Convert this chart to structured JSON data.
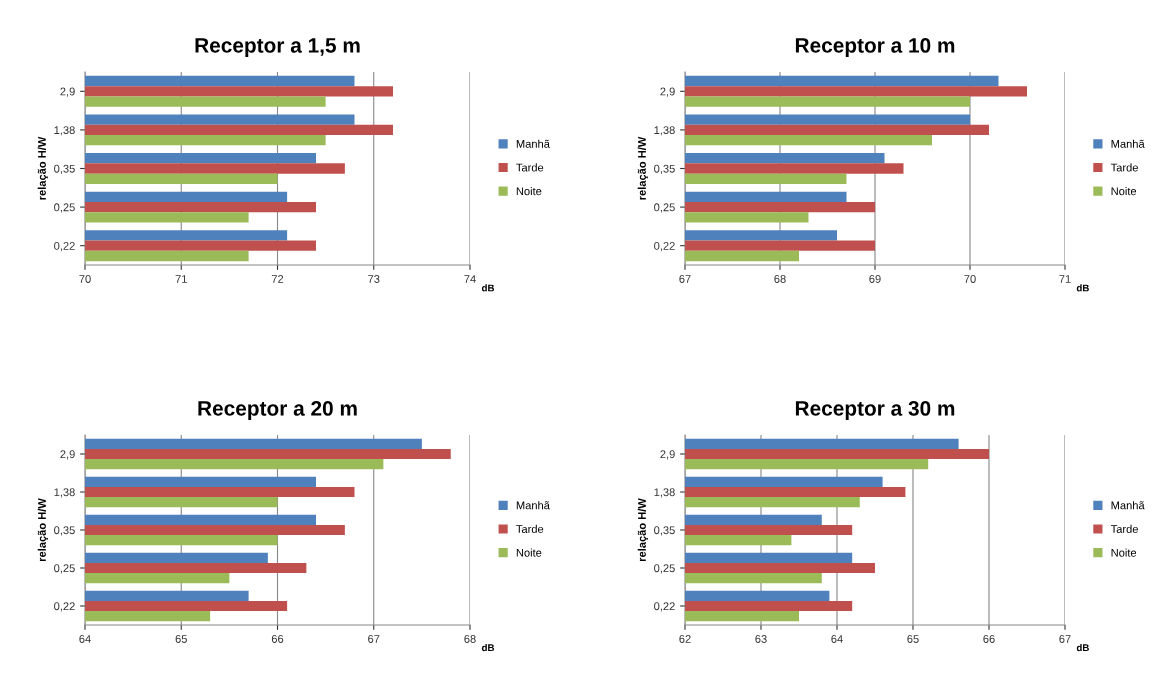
{
  "chart_data": [
    {
      "type": "bar",
      "orientation": "horizontal",
      "title": "Receptor a 1,5 m",
      "xlabel": "dB",
      "ylabel": "relação H/W",
      "categories": [
        "2,9",
        "1,38",
        "0,35",
        "0,25",
        "0,22"
      ],
      "xlim": [
        70,
        74
      ],
      "xticks": [
        70,
        71,
        72,
        73,
        74
      ],
      "grid": "x",
      "legend": "right",
      "series": [
        {
          "name": "Manhã",
          "color": "#4f81bd",
          "values": [
            72.8,
            72.8,
            72.4,
            72.1,
            72.1
          ]
        },
        {
          "name": "Tarde",
          "color": "#c0504d",
          "values": [
            73.2,
            73.2,
            72.7,
            72.4,
            72.4
          ]
        },
        {
          "name": "Noite",
          "color": "#9bbb59",
          "values": [
            72.5,
            72.5,
            72.0,
            71.7,
            71.7
          ]
        }
      ]
    },
    {
      "type": "bar",
      "orientation": "horizontal",
      "title": "Receptor a 10 m",
      "xlabel": "dB",
      "ylabel": "relação H/W",
      "categories": [
        "2,9",
        "1,38",
        "0,35",
        "0,25",
        "0,22"
      ],
      "xlim": [
        67,
        71
      ],
      "xticks": [
        67,
        68,
        69,
        70,
        71
      ],
      "grid": "x",
      "legend": "right",
      "series": [
        {
          "name": "Manhã",
          "color": "#4f81bd",
          "values": [
            70.3,
            70.0,
            69.1,
            68.7,
            68.6
          ]
        },
        {
          "name": "Tarde",
          "color": "#c0504d",
          "values": [
            70.6,
            70.2,
            69.3,
            69.0,
            69.0
          ]
        },
        {
          "name": "Noite",
          "color": "#9bbb59",
          "values": [
            70.0,
            69.6,
            68.7,
            68.3,
            68.2
          ]
        }
      ]
    },
    {
      "type": "bar",
      "orientation": "horizontal",
      "title": "Receptor a 20 m",
      "xlabel": "dB",
      "ylabel": "relação H/W",
      "categories": [
        "2,9",
        "1,38",
        "0,35",
        "0,25",
        "0,22"
      ],
      "xlim": [
        64,
        68
      ],
      "xticks": [
        64,
        65,
        66,
        67,
        68
      ],
      "grid": "x",
      "legend": "right",
      "series": [
        {
          "name": "Manhã",
          "color": "#4f81bd",
          "values": [
            67.5,
            66.4,
            66.4,
            65.9,
            65.7
          ]
        },
        {
          "name": "Tarde",
          "color": "#c0504d",
          "values": [
            67.8,
            66.8,
            66.7,
            66.3,
            66.1
          ]
        },
        {
          "name": "Noite",
          "color": "#9bbb59",
          "values": [
            67.1,
            66.0,
            66.0,
            65.5,
            65.3
          ]
        }
      ]
    },
    {
      "type": "bar",
      "orientation": "horizontal",
      "title": "Receptor a 30 m",
      "xlabel": "dB",
      "ylabel": "relação H/W",
      "categories": [
        "2,9",
        "1,38",
        "0,35",
        "0,25",
        "0,22"
      ],
      "xlim": [
        62,
        67
      ],
      "xticks": [
        62,
        63,
        64,
        65,
        66,
        67
      ],
      "grid": "x",
      "legend": "right",
      "series": [
        {
          "name": "Manhã",
          "color": "#4f81bd",
          "values": [
            65.6,
            64.6,
            63.8,
            64.2,
            63.9
          ]
        },
        {
          "name": "Tarde",
          "color": "#c0504d",
          "values": [
            66.0,
            64.9,
            64.2,
            64.5,
            64.2
          ]
        },
        {
          "name": "Noite",
          "color": "#9bbb59",
          "values": [
            65.2,
            64.3,
            63.4,
            63.8,
            63.5
          ]
        }
      ]
    }
  ]
}
